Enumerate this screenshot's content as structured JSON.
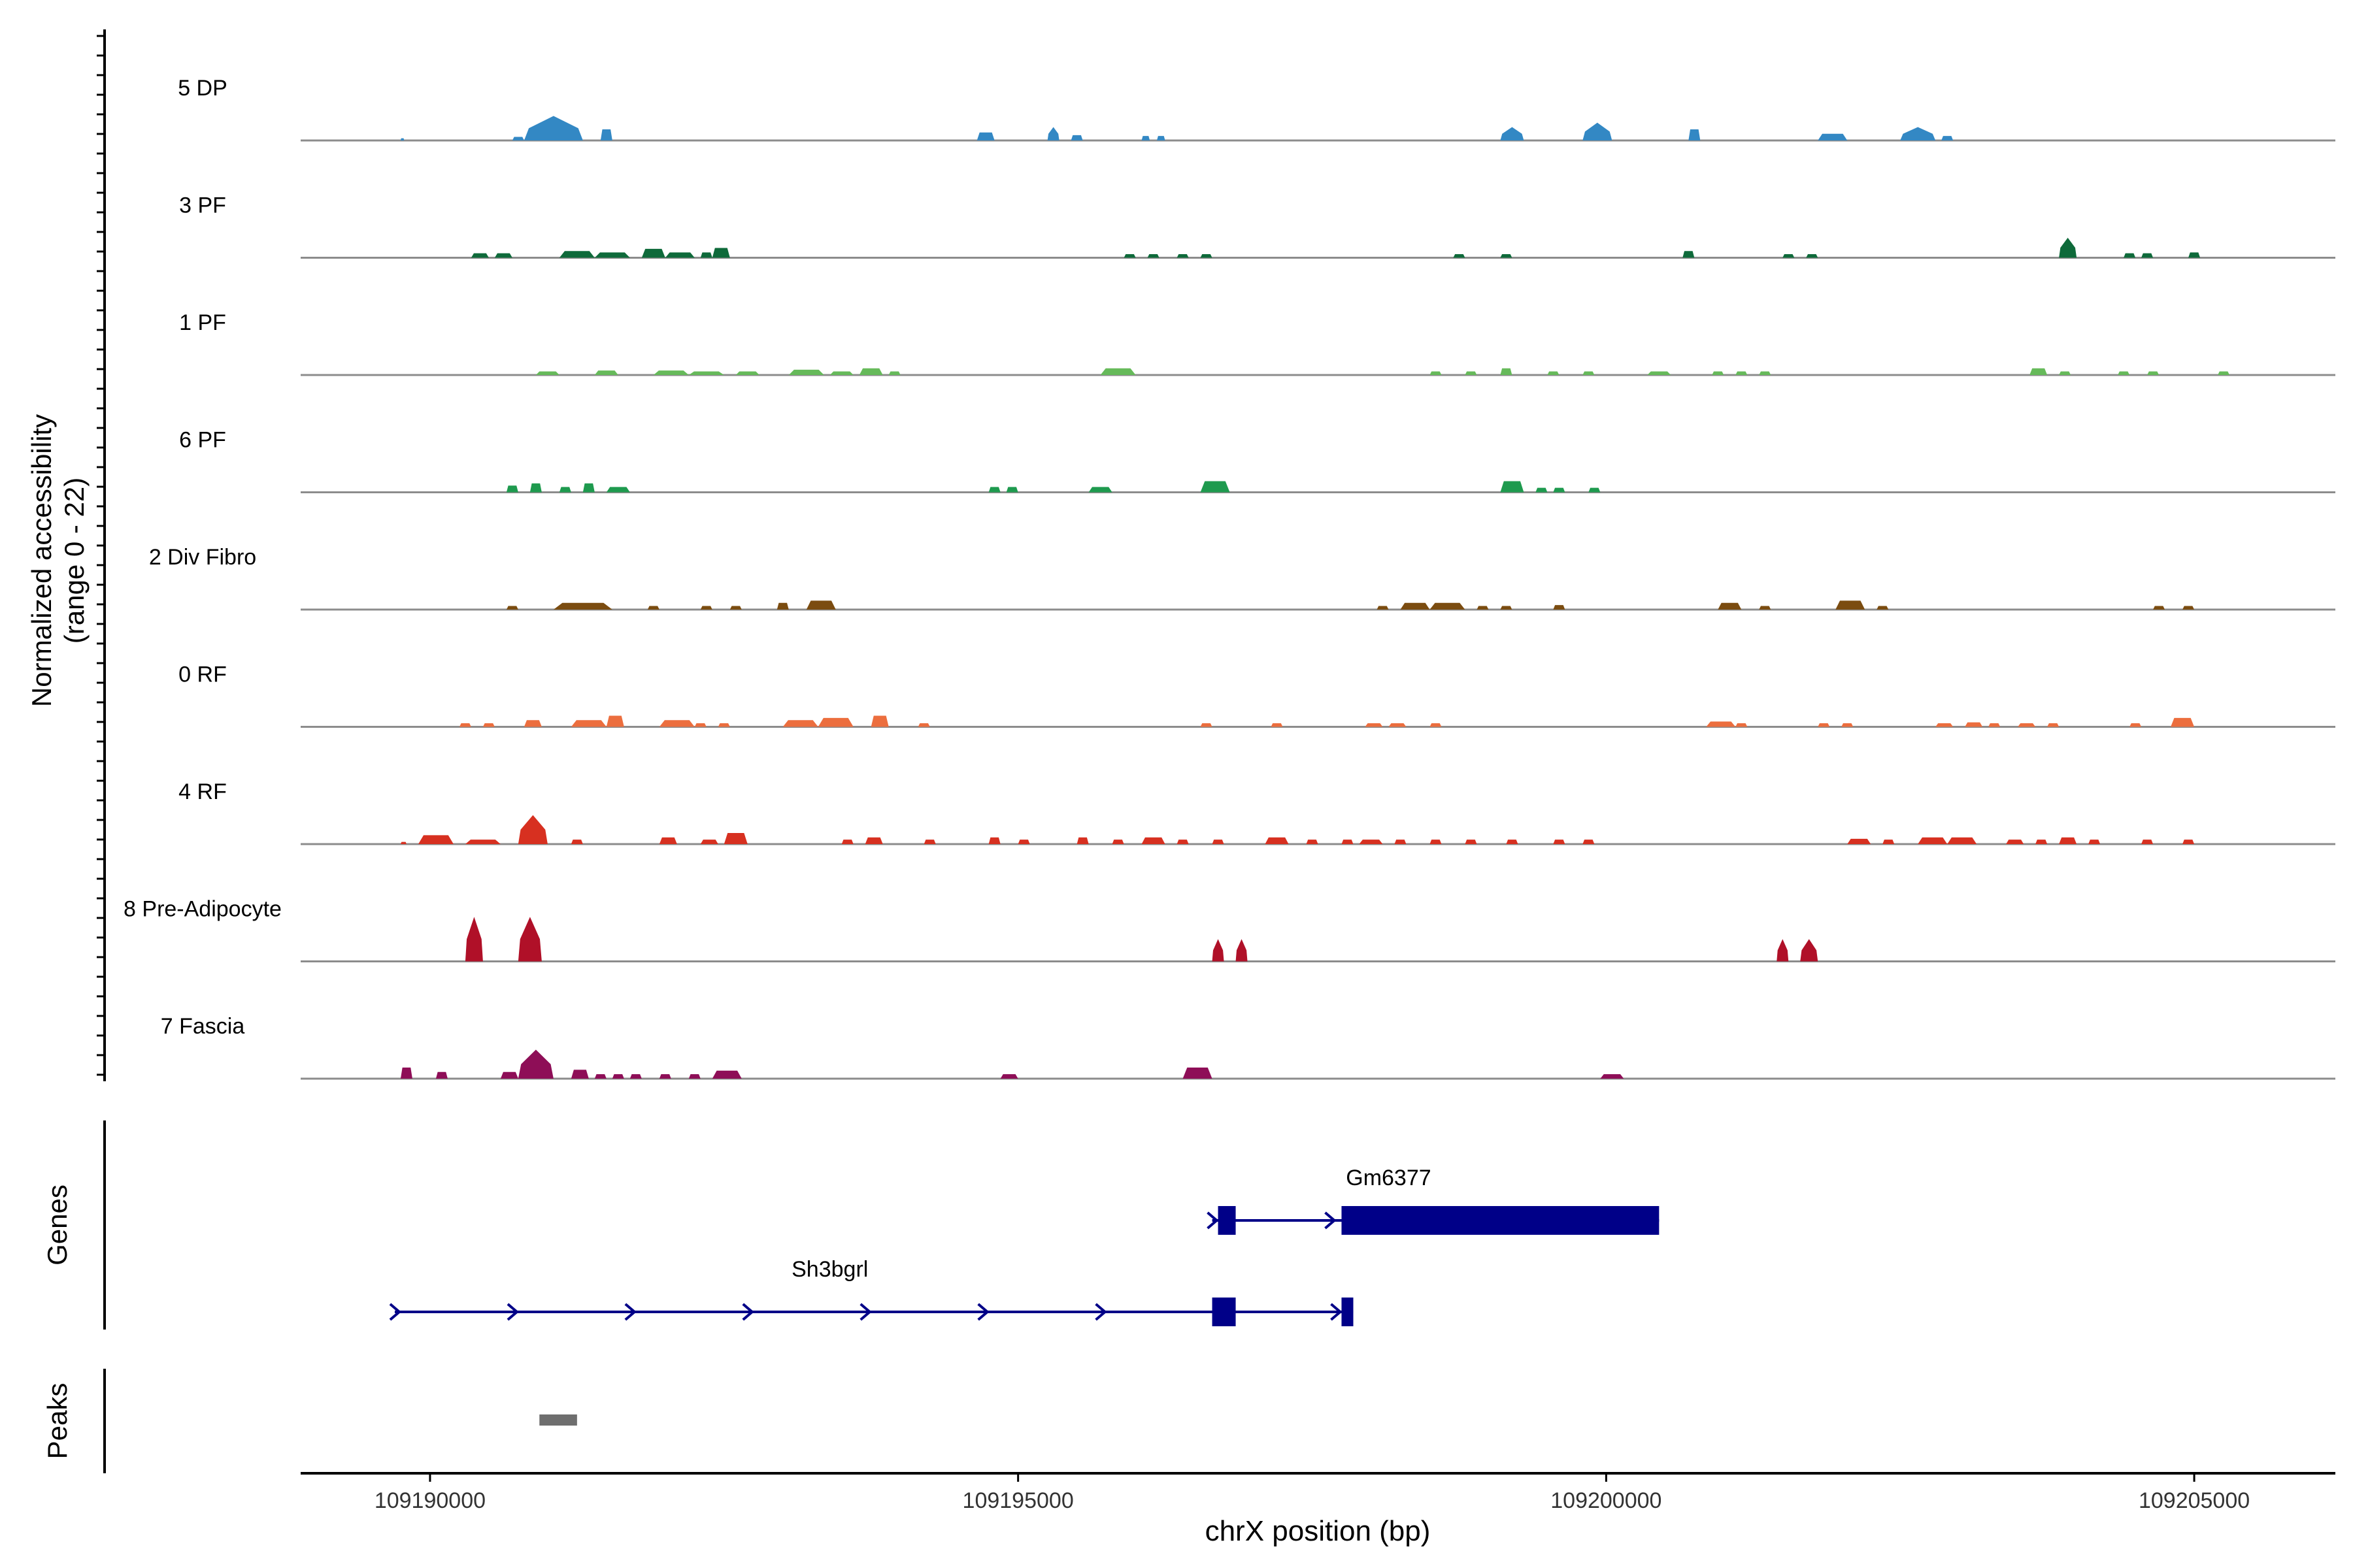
{
  "chart_data": {
    "type": "area",
    "title": "",
    "ylabel_line1": "Normalized accessibility",
    "ylabel_line2": "(range 0 - 22)",
    "xlabel": "chrX position (bp)",
    "xlim": [
      109188900,
      109206200
    ],
    "ylim": [
      0,
      22
    ],
    "xticks": [
      109190000,
      109195000,
      109200000,
      109205000
    ],
    "tick_labels": [
      "109190000",
      "109195000",
      "109200000",
      "109205000"
    ],
    "genes_label": "Genes",
    "peaks_label": "Peaks",
    "tracks": [
      {
        "name": "5 DP",
        "color": "#3388c4",
        "peaks": [
          [
            109189750,
            109189780,
            0.5
          ],
          [
            109190700,
            109190800,
            0.8
          ],
          [
            109190800,
            109191300,
            5.5
          ],
          [
            109191450,
            109191550,
            2.5
          ],
          [
            109194650,
            109194800,
            1.8
          ],
          [
            109195250,
            109195350,
            3
          ],
          [
            109195450,
            109195550,
            1.2
          ],
          [
            109196050,
            109196120,
            1
          ],
          [
            109196180,
            109196250,
            1
          ],
          [
            109199100,
            109199300,
            3
          ],
          [
            109199800,
            109200050,
            4
          ],
          [
            109200700,
            109200800,
            2.5
          ],
          [
            109201800,
            109202050,
            1.5
          ],
          [
            109202500,
            109202800,
            3
          ],
          [
            109202850,
            109202950,
            1
          ]
        ]
      },
      {
        "name": "3 PF",
        "color": "#0e6a3a",
        "peaks": [
          [
            109190350,
            109190500,
            1
          ],
          [
            109190550,
            109190700,
            1
          ],
          [
            109191100,
            109191400,
            1.5
          ],
          [
            109191400,
            109191700,
            1.2
          ],
          [
            109191800,
            109192000,
            2
          ],
          [
            109192000,
            109192250,
            1.2
          ],
          [
            109192300,
            109192400,
            1.2
          ],
          [
            109192400,
            109192550,
            2.2
          ],
          [
            109195900,
            109196000,
            0.8
          ],
          [
            109196100,
            109196200,
            0.8
          ],
          [
            109196350,
            109196450,
            0.8
          ],
          [
            109196550,
            109196650,
            0.8
          ],
          [
            109198700,
            109198800,
            0.8
          ],
          [
            109199100,
            109199200,
            0.8
          ],
          [
            109200650,
            109200750,
            1.5
          ],
          [
            109201500,
            109201600,
            0.8
          ],
          [
            109201700,
            109201800,
            0.8
          ],
          [
            109203850,
            109204000,
            4.5
          ],
          [
            109204400,
            109204500,
            1
          ],
          [
            109204550,
            109204650,
            1
          ],
          [
            109204950,
            109205050,
            1.2
          ]
        ]
      },
      {
        "name": "1 PF",
        "color": "#66ba5a",
        "peaks": [
          [
            109190900,
            109191100,
            0.8
          ],
          [
            109191400,
            109191600,
            1
          ],
          [
            109191900,
            109192200,
            1
          ],
          [
            109192200,
            109192500,
            0.8
          ],
          [
            109192600,
            109192800,
            0.8
          ],
          [
            109193050,
            109193350,
            1.2
          ],
          [
            109193400,
            109193600,
            0.8
          ],
          [
            109193650,
            109193850,
            1.5
          ],
          [
            109193900,
            109194000,
            0.8
          ],
          [
            109195700,
            109196000,
            1.5
          ],
          [
            109198500,
            109198600,
            0.8
          ],
          [
            109198800,
            109198900,
            0.8
          ],
          [
            109199100,
            109199200,
            1.5
          ],
          [
            109199500,
            109199600,
            0.8
          ],
          [
            109199800,
            109199900,
            0.8
          ],
          [
            109200350,
            109200550,
            0.8
          ],
          [
            109200900,
            109201000,
            0.8
          ],
          [
            109201100,
            109201200,
            0.8
          ],
          [
            109201300,
            109201400,
            0.8
          ],
          [
            109203600,
            109203750,
            1.5
          ],
          [
            109203850,
            109203950,
            0.8
          ],
          [
            109204350,
            109204450,
            0.8
          ],
          [
            109204600,
            109204700,
            0.8
          ],
          [
            109205200,
            109205300,
            0.8
          ]
        ]
      },
      {
        "name": "6 PF",
        "color": "#1e9a4e",
        "peaks": [
          [
            109190650,
            109190750,
            1.5
          ],
          [
            109190850,
            109190950,
            2
          ],
          [
            109191100,
            109191200,
            1.2
          ],
          [
            109191300,
            109191400,
            2
          ],
          [
            109191500,
            109191700,
            1.2
          ],
          [
            109194750,
            109194850,
            1.2
          ],
          [
            109194900,
            109195000,
            1.2
          ],
          [
            109195600,
            109195800,
            1.2
          ],
          [
            109196550,
            109196800,
            2.5
          ],
          [
            109199100,
            109199300,
            2.5
          ],
          [
            109199400,
            109199500,
            1
          ],
          [
            109199550,
            109199650,
            1
          ],
          [
            109199850,
            109199950,
            1
          ]
        ]
      },
      {
        "name": "2 Div Fibro",
        "color": "#7b4c10",
        "peaks": [
          [
            109190650,
            109190750,
            0.8
          ],
          [
            109191050,
            109191550,
            1.5
          ],
          [
            109191850,
            109191950,
            0.8
          ],
          [
            109192300,
            109192400,
            0.8
          ],
          [
            109192550,
            109192650,
            0.8
          ],
          [
            109192950,
            109193050,
            1.5
          ],
          [
            109193200,
            109193450,
            2
          ],
          [
            109198050,
            109198150,
            0.8
          ],
          [
            109198250,
            109198500,
            1.5
          ],
          [
            109198500,
            109198800,
            1.5
          ],
          [
            109198900,
            109199000,
            0.8
          ],
          [
            109199100,
            109199200,
            0.8
          ],
          [
            109199550,
            109199650,
            1
          ],
          [
            109200950,
            109201150,
            1.5
          ],
          [
            109201300,
            109201400,
            0.8
          ],
          [
            109201950,
            109202200,
            2
          ],
          [
            109202300,
            109202400,
            0.8
          ],
          [
            109204650,
            109204750,
            0.8
          ],
          [
            109204900,
            109205000,
            0.8
          ]
        ]
      },
      {
        "name": "0 RF",
        "color": "#ec6e3e",
        "peaks": [
          [
            109190250,
            109190350,
            0.8
          ],
          [
            109190450,
            109190550,
            0.8
          ],
          [
            109190800,
            109190950,
            1.5
          ],
          [
            109191200,
            109191500,
            1.5
          ],
          [
            109191500,
            109191650,
            2.5
          ],
          [
            109191950,
            109192250,
            1.5
          ],
          [
            109192250,
            109192350,
            0.8
          ],
          [
            109192450,
            109192550,
            0.8
          ],
          [
            109193000,
            109193300,
            1.5
          ],
          [
            109193300,
            109193600,
            2
          ],
          [
            109193750,
            109193900,
            2.5
          ],
          [
            109194150,
            109194250,
            0.8
          ],
          [
            109196550,
            109196650,
            0.8
          ],
          [
            109197150,
            109197250,
            0.8
          ],
          [
            109197950,
            109198100,
            0.8
          ],
          [
            109198150,
            109198300,
            0.8
          ],
          [
            109198500,
            109198600,
            0.8
          ],
          [
            109200850,
            109201100,
            1.2
          ],
          [
            109201100,
            109201200,
            0.8
          ],
          [
            109201800,
            109201900,
            0.8
          ],
          [
            109202000,
            109202100,
            0.8
          ],
          [
            109202800,
            109202950,
            0.8
          ],
          [
            109203050,
            109203200,
            1
          ],
          [
            109203250,
            109203350,
            0.8
          ],
          [
            109203500,
            109203650,
            0.8
          ],
          [
            109203750,
            109203850,
            0.8
          ],
          [
            109204450,
            109204550,
            0.8
          ],
          [
            109204800,
            109205000,
            2
          ]
        ]
      },
      {
        "name": "4 RF",
        "color": "#d73020",
        "peaks": [
          [
            109189750,
            109189800,
            0.5
          ],
          [
            109189900,
            109190200,
            2
          ],
          [
            109190300,
            109190600,
            1
          ],
          [
            109190750,
            109191000,
            6.5
          ],
          [
            109191200,
            109191300,
            1
          ],
          [
            109191950,
            109192100,
            1.5
          ],
          [
            109192300,
            109192450,
            1
          ],
          [
            109192500,
            109192700,
            2.5
          ],
          [
            109193500,
            109193600,
            1
          ],
          [
            109193700,
            109193850,
            1.5
          ],
          [
            109194200,
            109194300,
            1
          ],
          [
            109194750,
            109194850,
            1.5
          ],
          [
            109195000,
            109195100,
            1
          ],
          [
            109195500,
            109195600,
            1.5
          ],
          [
            109195800,
            109195900,
            1
          ],
          [
            109196050,
            109196250,
            1.5
          ],
          [
            109196350,
            109196450,
            1
          ],
          [
            109196650,
            109196750,
            1
          ],
          [
            109197100,
            109197300,
            1.5
          ],
          [
            109197450,
            109197550,
            1
          ],
          [
            109197750,
            109197850,
            1
          ],
          [
            109197900,
            109198100,
            1
          ],
          [
            109198200,
            109198300,
            1
          ],
          [
            109198500,
            109198600,
            1
          ],
          [
            109198800,
            109198900,
            1
          ],
          [
            109199150,
            109199250,
            1
          ],
          [
            109199550,
            109199650,
            1
          ],
          [
            109199800,
            109199900,
            1
          ],
          [
            109202050,
            109202250,
            1.2
          ],
          [
            109202350,
            109202450,
            1
          ],
          [
            109202650,
            109202900,
            1.5
          ],
          [
            109202900,
            109203150,
            1.5
          ],
          [
            109203400,
            109203550,
            1
          ],
          [
            109203650,
            109203750,
            1
          ],
          [
            109203850,
            109204000,
            1.5
          ],
          [
            109204100,
            109204200,
            1
          ],
          [
            109204550,
            109204650,
            1
          ],
          [
            109204900,
            109205000,
            1
          ]
        ]
      },
      {
        "name": "8 Pre-Adipocyte",
        "color": "#b01028",
        "peaks": [
          [
            109190300,
            109190450,
            10
          ],
          [
            109190750,
            109190950,
            10
          ],
          [
            109196650,
            109196750,
            5
          ],
          [
            109196850,
            109196950,
            5
          ],
          [
            109201450,
            109201550,
            5
          ],
          [
            109201650,
            109201800,
            5
          ]
        ]
      },
      {
        "name": "7 Fascia",
        "color": "#8e0e57",
        "peaks": [
          [
            109189750,
            109189850,
            2.5
          ],
          [
            109190050,
            109190150,
            1.5
          ],
          [
            109190600,
            109190750,
            1.5
          ],
          [
            109190750,
            109191050,
            6.5
          ],
          [
            109191200,
            109191350,
            2
          ],
          [
            109191400,
            109191500,
            1
          ],
          [
            109191550,
            109191650,
            1
          ],
          [
            109191700,
            109191800,
            1
          ],
          [
            109191950,
            109192050,
            1
          ],
          [
            109192200,
            109192300,
            1
          ],
          [
            109192400,
            109192650,
            1.8
          ],
          [
            109194850,
            109195000,
            1
          ],
          [
            109196400,
            109196650,
            2.5
          ],
          [
            109199950,
            109200150,
            1
          ]
        ]
      }
    ],
    "genes": [
      {
        "name": "Gm6377",
        "strand": "+",
        "row": 0,
        "start": 109196650,
        "end": 109200450,
        "exons": [
          [
            109196700,
            109196850
          ],
          [
            109197750,
            109200450
          ]
        ]
      },
      {
        "name": "Sh3bgrl",
        "strand": "+",
        "row": 1,
        "start": 109189700,
        "end": 109197850,
        "exons": [
          [
            109196650,
            109196850
          ],
          [
            109197750,
            109197850
          ]
        ]
      }
    ],
    "peaks": [
      [
        109190930,
        109191250
      ]
    ]
  }
}
